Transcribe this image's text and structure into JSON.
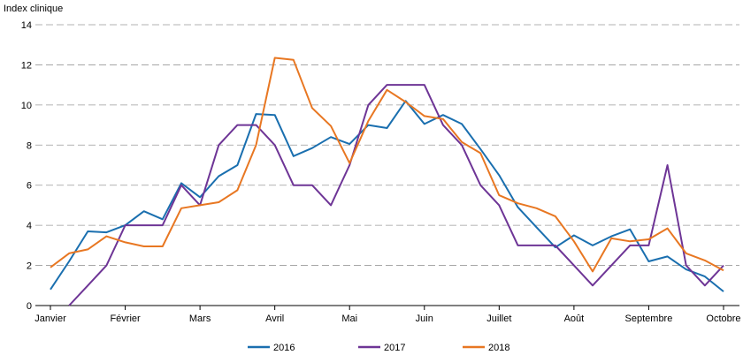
{
  "chart_data": {
    "type": "line",
    "ylabel": "Index clinique",
    "xlabel": "",
    "ylim": [
      0,
      14
    ],
    "yticks": [
      0,
      2,
      4,
      6,
      8,
      10,
      12,
      14
    ],
    "grid": "horizontal dashed",
    "legend_position": "bottom-center",
    "month_labels": [
      "Janvier",
      "Février",
      "Mars",
      "Avril",
      "Mai",
      "Juin",
      "Juillet",
      "Août",
      "Septembre",
      "Octobre"
    ],
    "month_positions": [
      0,
      4,
      8,
      12,
      16,
      20,
      24,
      28,
      32,
      36
    ],
    "x_range": [
      0,
      36
    ],
    "series": [
      {
        "name": "2016",
        "color": "#1a6faf",
        "x": [
          0,
          1,
          2,
          3,
          4,
          5,
          6,
          7,
          8,
          9,
          10,
          11,
          12,
          13,
          14,
          15,
          16,
          17,
          18,
          19,
          20,
          21,
          22,
          23,
          24,
          25,
          26,
          27,
          28,
          29,
          30,
          31,
          32,
          33,
          34,
          35,
          36
        ],
        "values": [
          0.8,
          2.2,
          3.7,
          3.65,
          4.0,
          4.7,
          4.3,
          6.1,
          5.4,
          6.45,
          7.0,
          9.55,
          9.5,
          7.45,
          7.85,
          8.4,
          8.05,
          9.0,
          8.85,
          10.2,
          9.05,
          9.5,
          9.05,
          7.8,
          6.5,
          4.9,
          3.9,
          2.9,
          3.5,
          3.0,
          3.45,
          3.8,
          2.2,
          2.45,
          1.8,
          1.45,
          0.7
        ]
      },
      {
        "name": "2017",
        "color": "#6e3596",
        "x": [
          1,
          2,
          3,
          4,
          5,
          6,
          7,
          8,
          9,
          10,
          11,
          12,
          13,
          14,
          15,
          16,
          17,
          18,
          19,
          20,
          21,
          22,
          23,
          24,
          25,
          26,
          27,
          28,
          29,
          30,
          31,
          32,
          33,
          34,
          35,
          36
        ],
        "values": [
          0.0,
          1.0,
          2.0,
          4.0,
          4.0,
          4.0,
          6.0,
          5.0,
          8.0,
          9.0,
          9.0,
          8.0,
          6.0,
          6.0,
          5.0,
          7.0,
          10.0,
          11.0,
          11.0,
          11.0,
          9.0,
          8.0,
          6.0,
          5.0,
          3.0,
          3.0,
          3.0,
          2.0,
          1.0,
          2.0,
          3.0,
          3.0,
          7.0,
          2.0,
          1.0,
          2.0
        ]
      },
      {
        "name": "2018",
        "color": "#e87722",
        "x": [
          0,
          1,
          2,
          3,
          4,
          5,
          6,
          7,
          8,
          9,
          10,
          11,
          12,
          13,
          14,
          15,
          16,
          17,
          18,
          19,
          20,
          21,
          22,
          23,
          24,
          25,
          26,
          27,
          28,
          29,
          30,
          31,
          32,
          33,
          34,
          35,
          36
        ],
        "values": [
          1.9,
          2.6,
          2.8,
          3.45,
          3.15,
          2.95,
          2.95,
          4.85,
          5.0,
          5.15,
          5.75,
          8.0,
          12.35,
          12.25,
          9.85,
          8.95,
          7.1,
          9.2,
          10.75,
          10.15,
          9.45,
          9.3,
          8.15,
          7.6,
          5.5,
          5.1,
          4.85,
          4.45,
          3.2,
          1.7,
          3.35,
          3.2,
          3.3,
          3.85,
          2.6,
          2.25,
          1.75
        ]
      }
    ]
  }
}
